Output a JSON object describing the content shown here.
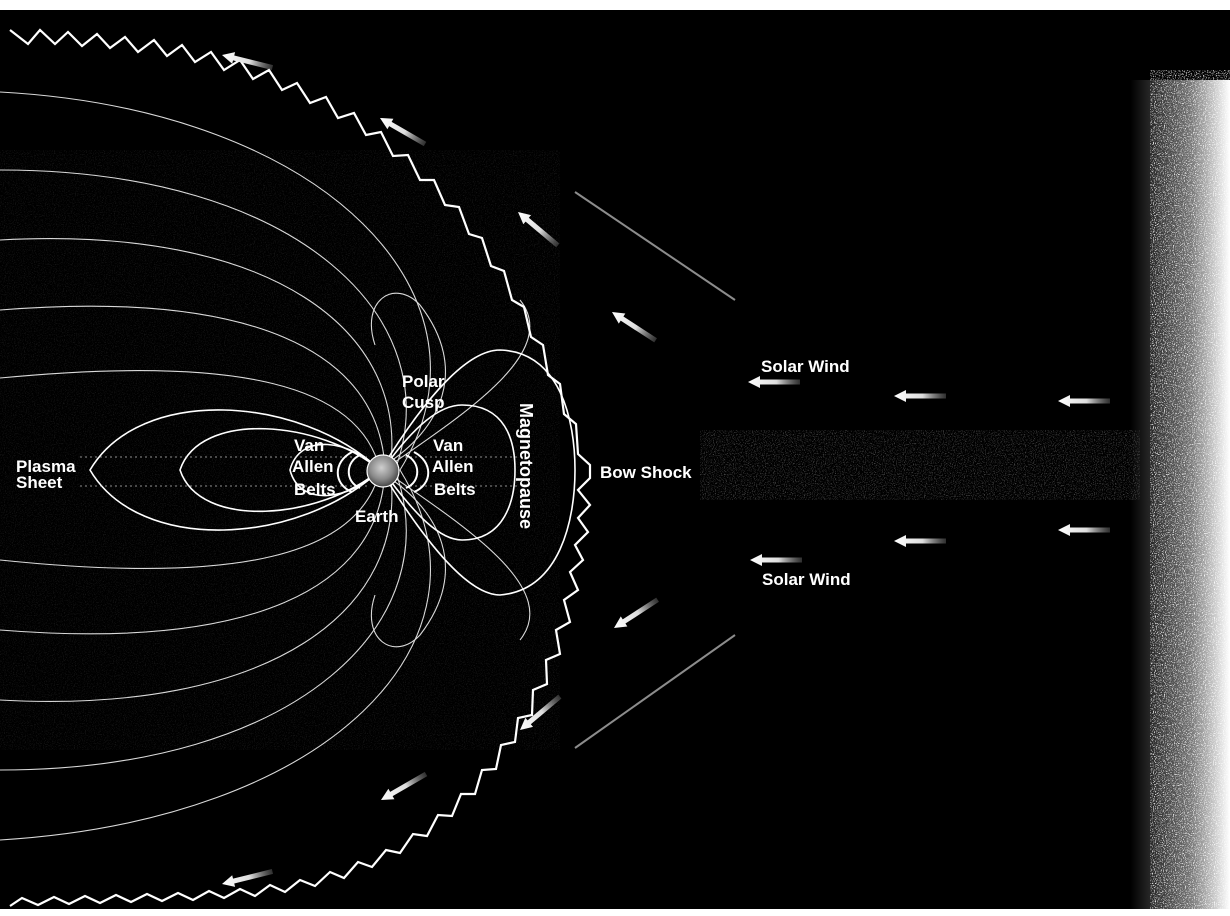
{
  "diagram": {
    "labels": {
      "plasma_sheet": [
        "Plasma",
        "Sheet"
      ],
      "van_allen_left": [
        "Van",
        "Allen",
        "Belts"
      ],
      "van_allen_right": [
        "Van",
        "Allen",
        "Belts"
      ],
      "polar_cusp": [
        "Polar",
        "Cusp"
      ],
      "earth": "Earth",
      "magnetopause": "Magnetopause",
      "bow_shock": "Bow Shock",
      "solar_wind_top": "Solar Wind",
      "solar_wind_bottom": "Solar Wind"
    },
    "colors": {
      "space": "#000000",
      "field_lines": "#ffffff",
      "labels": "#ffffff",
      "margin": "#ffffff"
    },
    "icons": {
      "arrow": "left-arrow-icon",
      "earth": "earth-globe-icon"
    }
  }
}
